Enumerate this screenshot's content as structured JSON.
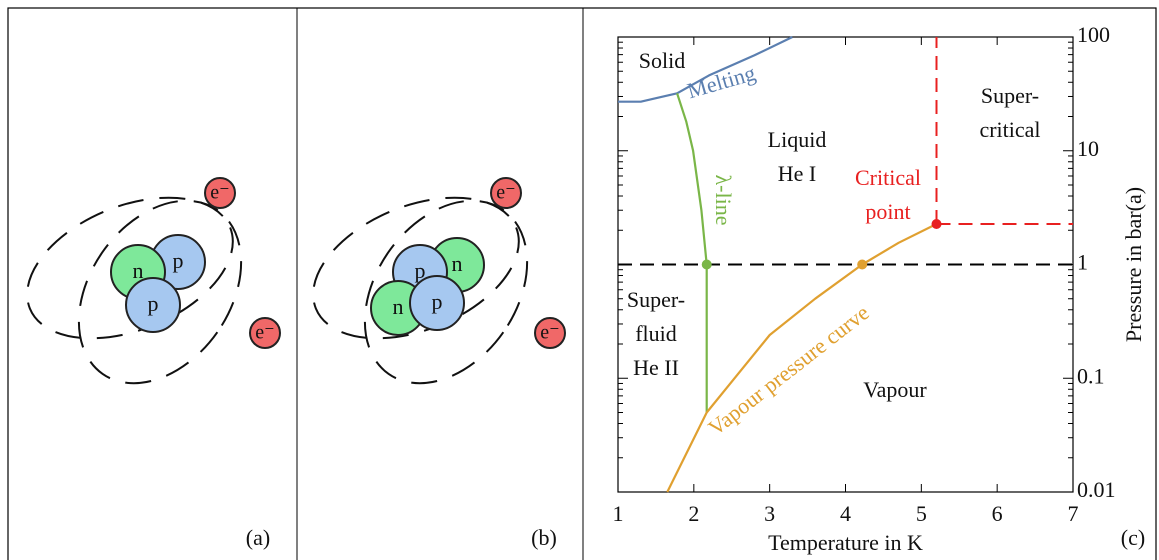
{
  "panel_a": {
    "label": "(a)",
    "nucleons": [
      "p",
      "n",
      "p"
    ],
    "electrons": [
      "e⁻",
      "e⁻"
    ]
  },
  "panel_b": {
    "label": "(b)",
    "nucleons": [
      "n",
      "p",
      "n",
      "p"
    ],
    "electrons": [
      "e⁻",
      "e⁻"
    ]
  },
  "chart_data": {
    "type": "line",
    "label": "(c)",
    "xlabel": "Temperature in K",
    "ylabel": "Pressure in bar(a)",
    "xlim": [
      1,
      7
    ],
    "xticks": [
      1,
      2,
      3,
      4,
      5,
      6,
      7
    ],
    "ylim": [
      0.01,
      100
    ],
    "yticks": [
      0.01,
      0.1,
      1,
      10,
      100
    ],
    "ylog": true,
    "series": [
      {
        "name": "Melting",
        "color": "#5b7fb0",
        "x": [
          1.0,
          1.3,
          1.5,
          1.78,
          2.2,
          2.8,
          3.3
        ],
        "values": [
          27,
          27,
          29,
          32,
          46,
          69,
          100
        ]
      },
      {
        "name": "λ-line",
        "color": "#7ab648",
        "x": [
          1.78,
          1.9,
          1.99,
          2.1,
          2.17,
          2.17
        ],
        "values": [
          32,
          18,
          10,
          3,
          1,
          0.05
        ]
      },
      {
        "name": "Vapour pressure curve",
        "color": "#e0a030",
        "x": [
          1.65,
          2.17,
          3.0,
          3.6,
          4.22,
          4.7,
          5.2
        ],
        "values": [
          0.01,
          0.05,
          0.24,
          0.5,
          1,
          1.55,
          2.27
        ]
      }
    ],
    "points": [
      {
        "x": 2.17,
        "y": 1,
        "color": "#7ab648"
      },
      {
        "x": 4.22,
        "y": 1,
        "color": "#e0a030"
      },
      {
        "x": 5.2,
        "y": 2.27,
        "color": "#e82020"
      }
    ],
    "hline": {
      "y": 1,
      "color": "#000000"
    },
    "critical_color": "#e82020",
    "regions": [
      [
        "Solid"
      ],
      [
        "Liquid",
        "He I"
      ],
      [
        "Super-",
        "critical"
      ],
      [
        "Critical",
        "point"
      ],
      [
        "Super-",
        "fluid",
        "He II"
      ],
      [
        "Vapour"
      ]
    ]
  }
}
